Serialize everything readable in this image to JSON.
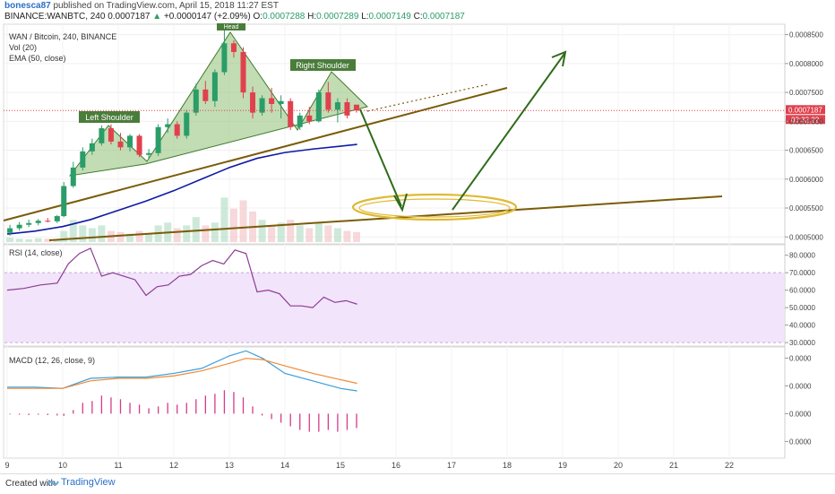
{
  "header": {
    "user": "bonesca87",
    "published": "published on TradingView.com, April 15, 2018 11:27 EST",
    "symbol_line": "BINANCE:WANBTC, 240",
    "price": "0.0007187",
    "change": "+0.0000147 (+2.09%)",
    "ohlc": {
      "o_label": "O:",
      "o": "0.0007288",
      "h_label": "H:",
      "h": "0.0007289",
      "l_label": "L:",
      "l": "0.0007149",
      "c_label": "C:",
      "c": "0.0007187"
    }
  },
  "legend": {
    "title": "WAN / Bitcoin, 240, BINANCE",
    "vol": "Vol (20)",
    "ema": "EMA (50, close)",
    "rsi": "RSI (14, close)",
    "macd": "MACD (12, 26, close, 9)"
  },
  "price_tag": {
    "price": "0.0007187",
    "timer": "03:32:22"
  },
  "annotations": {
    "left_shoulder": "Left Shoulder",
    "head": "Head",
    "right_shoulder": "Right Shoulder"
  },
  "footer": {
    "created": "Created with",
    "brand": "TradingView"
  },
  "colors": {
    "up": "#2a9d68",
    "down": "#e0414d",
    "ema": "#0e1aa3",
    "trendline": "#7a5c08",
    "pattern_fill": "#8fbf77",
    "arrow": "#2f6b1a",
    "ellipse": "#e0b932",
    "rsi": "#8b3d93",
    "rsi_band": "#f2e4fa",
    "macd": "#3b9ddc",
    "signal": "#f08a34",
    "hist": "#d63a8a"
  },
  "chart_data": [
    {
      "type": "candlestick",
      "title": "WAN / Bitcoin, 240, BINANCE",
      "x_ticks": [
        "9",
        "10",
        "11",
        "12",
        "13",
        "14",
        "15",
        "16",
        "17",
        "18",
        "19",
        "20",
        "21",
        "22"
      ],
      "y_ticks": [
        "0.0008500",
        "0.0008000",
        "0.0007500",
        "0.0007000",
        "0.0006500",
        "0.0006000",
        "0.0005500",
        "0.0005000"
      ],
      "ylim": [
        0.000488,
        0.000868
      ],
      "xlim": [
        9.0,
        23.0
      ],
      "last_price": 0.0007187,
      "candles": [
        {
          "t": 9.05,
          "o": 0.000507,
          "h": 0.000521,
          "l": 0.000502,
          "c": 0.000515
        },
        {
          "t": 9.22,
          "o": 0.000515,
          "h": 0.000526,
          "l": 0.000511,
          "c": 0.000521
        },
        {
          "t": 9.39,
          "o": 0.000521,
          "h": 0.00053,
          "l": 0.000517,
          "c": 0.000524
        },
        {
          "t": 9.56,
          "o": 0.000524,
          "h": 0.000531,
          "l": 0.00052,
          "c": 0.000528
        },
        {
          "t": 9.73,
          "o": 0.000528,
          "h": 0.000533,
          "l": 0.000525,
          "c": 0.000527
        },
        {
          "t": 9.9,
          "o": 0.000527,
          "h": 0.000538,
          "l": 0.000524,
          "c": 0.000536
        },
        {
          "t": 10.02,
          "o": 0.000536,
          "h": 0.000595,
          "l": 0.000534,
          "c": 0.000588
        },
        {
          "t": 10.19,
          "o": 0.000588,
          "h": 0.00063,
          "l": 0.000585,
          "c": 0.00062
        },
        {
          "t": 10.36,
          "o": 0.00062,
          "h": 0.000655,
          "l": 0.000615,
          "c": 0.000648
        },
        {
          "t": 10.53,
          "o": 0.000648,
          "h": 0.00067,
          "l": 0.000642,
          "c": 0.000662
        },
        {
          "t": 10.7,
          "o": 0.000662,
          "h": 0.000693,
          "l": 0.000658,
          "c": 0.000688
        },
        {
          "t": 10.87,
          "o": 0.000688,
          "h": 0.000695,
          "l": 0.00066,
          "c": 0.000665
        },
        {
          "t": 11.04,
          "o": 0.000665,
          "h": 0.00068,
          "l": 0.00065,
          "c": 0.000655
        },
        {
          "t": 11.21,
          "o": 0.000655,
          "h": 0.000678,
          "l": 0.000648,
          "c": 0.000675
        },
        {
          "t": 11.38,
          "o": 0.000675,
          "h": 0.000678,
          "l": 0.000638,
          "c": 0.000642
        },
        {
          "t": 11.55,
          "o": 0.000642,
          "h": 0.000652,
          "l": 0.000635,
          "c": 0.000645
        },
        {
          "t": 11.72,
          "o": 0.000645,
          "h": 0.000695,
          "l": 0.00064,
          "c": 0.00069
        },
        {
          "t": 11.89,
          "o": 0.00069,
          "h": 0.000705,
          "l": 0.00068,
          "c": 0.000695
        },
        {
          "t": 12.06,
          "o": 0.000695,
          "h": 0.0007,
          "l": 0.00067,
          "c": 0.000675
        },
        {
          "t": 12.23,
          "o": 0.000675,
          "h": 0.00072,
          "l": 0.00067,
          "c": 0.000715
        },
        {
          "t": 12.4,
          "o": 0.000715,
          "h": 0.000765,
          "l": 0.00071,
          "c": 0.000755
        },
        {
          "t": 12.57,
          "o": 0.000755,
          "h": 0.00077,
          "l": 0.00073,
          "c": 0.000735
        },
        {
          "t": 12.74,
          "o": 0.000735,
          "h": 0.00079,
          "l": 0.000725,
          "c": 0.000785
        },
        {
          "t": 12.91,
          "o": 0.000785,
          "h": 0.000865,
          "l": 0.00078,
          "c": 0.000835
        },
        {
          "t": 13.08,
          "o": 0.000835,
          "h": 0.00084,
          "l": 0.00081,
          "c": 0.00082
        },
        {
          "t": 13.25,
          "o": 0.00082,
          "h": 0.000828,
          "l": 0.00074,
          "c": 0.00075
        },
        {
          "t": 13.42,
          "o": 0.00075,
          "h": 0.00076,
          "l": 0.000705,
          "c": 0.000715
        },
        {
          "t": 13.59,
          "o": 0.000715,
          "h": 0.000745,
          "l": 0.00071,
          "c": 0.00074
        },
        {
          "t": 13.76,
          "o": 0.00074,
          "h": 0.000758,
          "l": 0.000715,
          "c": 0.00073
        },
        {
          "t": 13.93,
          "o": 0.00073,
          "h": 0.000745,
          "l": 0.000705,
          "c": 0.000735
        },
        {
          "t": 14.1,
          "o": 0.000735,
          "h": 0.00074,
          "l": 0.000685,
          "c": 0.00069
        },
        {
          "t": 14.27,
          "o": 0.00069,
          "h": 0.000715,
          "l": 0.000685,
          "c": 0.00071
        },
        {
          "t": 14.44,
          "o": 0.00071,
          "h": 0.000725,
          "l": 0.000695,
          "c": 0.0007
        },
        {
          "t": 14.61,
          "o": 0.0007,
          "h": 0.000755,
          "l": 0.000698,
          "c": 0.00075
        },
        {
          "t": 14.78,
          "o": 0.00075,
          "h": 0.000768,
          "l": 0.000715,
          "c": 0.00072
        },
        {
          "t": 14.95,
          "o": 0.00072,
          "h": 0.00074,
          "l": 0.000698,
          "c": 0.000733
        },
        {
          "t": 15.12,
          "o": 0.000733,
          "h": 0.00074,
          "l": 0.000705,
          "c": 0.00071
        },
        {
          "t": 15.29,
          "o": 0.0007288,
          "h": 0.0007289,
          "l": 0.0007149,
          "c": 0.0007187
        }
      ],
      "ema50": [
        [
          9.0,
          0.000505
        ],
        [
          9.5,
          0.00051
        ],
        [
          10.0,
          0.000518
        ],
        [
          10.5,
          0.00053
        ],
        [
          11.0,
          0.000546
        ],
        [
          11.5,
          0.000562
        ],
        [
          12.0,
          0.00058
        ],
        [
          12.5,
          0.0006
        ],
        [
          13.0,
          0.00062
        ],
        [
          13.5,
          0.000636
        ],
        [
          14.0,
          0.000646
        ],
        [
          14.5,
          0.000652
        ],
        [
          15.0,
          0.000657
        ],
        [
          15.3,
          0.00066
        ]
      ],
      "volume": {
        "ylim": [
          0,
          1
        ],
        "values": [
          0.08,
          0.06,
          0.05,
          0.07,
          0.06,
          0.05,
          0.2,
          0.4,
          0.3,
          0.25,
          0.3,
          0.2,
          0.18,
          0.15,
          0.2,
          0.16,
          0.3,
          0.35,
          0.25,
          0.3,
          0.45,
          0.3,
          0.35,
          0.8,
          0.6,
          0.75,
          0.55,
          0.4,
          0.3,
          0.35,
          0.4,
          0.3,
          0.25,
          0.35,
          0.3,
          0.25,
          0.2,
          0.18
        ]
      }
    },
    {
      "type": "line",
      "title": "RSI (14, close)",
      "y_ticks": [
        "80.0000",
        "70.0000",
        "60.0000",
        "50.0000",
        "40.0000",
        "30.0000"
      ],
      "ylim": [
        28,
        86
      ],
      "band": [
        30,
        70
      ],
      "x": [
        9.0,
        9.3,
        9.6,
        9.9,
        10.1,
        10.3,
        10.5,
        10.7,
        10.9,
        11.1,
        11.3,
        11.5,
        11.7,
        11.9,
        12.1,
        12.3,
        12.5,
        12.7,
        12.9,
        13.1,
        13.3,
        13.5,
        13.7,
        13.9,
        14.1,
        14.3,
        14.5,
        14.7,
        14.9,
        15.1,
        15.3
      ],
      "values": [
        60,
        61,
        63,
        64,
        75,
        81,
        84,
        68,
        70,
        68,
        66,
        57,
        62,
        63,
        68,
        69,
        74,
        77,
        75,
        83,
        81,
        59,
        60,
        58,
        51,
        51,
        50,
        56,
        53,
        54,
        52
      ]
    },
    {
      "type": "line",
      "title": "MACD (12, 26, close, 9)",
      "y_ticks": [
        "0.0000",
        "0.0000",
        "0.0000",
        "0.0000"
      ],
      "y_tick_values": [
        1.0,
        0.0,
        -1.0,
        -2.0
      ],
      "ylim": [
        -2.6,
        1.4
      ],
      "series": [
        {
          "name": "MACD",
          "x": [
            9.0,
            9.5,
            10.0,
            10.5,
            11.0,
            11.5,
            12.0,
            12.5,
            13.0,
            13.3,
            13.6,
            14.0,
            14.5,
            15.0,
            15.3
          ],
          "values": [
            -0.05,
            -0.05,
            -0.1,
            0.3,
            0.35,
            0.35,
            0.5,
            0.7,
            1.2,
            1.4,
            1.1,
            0.5,
            0.2,
            -0.1,
            -0.2
          ]
        },
        {
          "name": "Signal",
          "x": [
            9.0,
            9.5,
            10.0,
            10.5,
            11.0,
            11.5,
            12.0,
            12.5,
            13.0,
            13.3,
            13.6,
            14.0,
            14.5,
            15.0,
            15.3
          ],
          "values": [
            -0.1,
            -0.1,
            -0.1,
            0.2,
            0.3,
            0.3,
            0.4,
            0.6,
            0.9,
            1.1,
            1.05,
            0.8,
            0.5,
            0.25,
            0.1
          ]
        },
        {
          "name": "Histogram",
          "x": [
            9.05,
            9.22,
            9.39,
            9.56,
            9.73,
            9.9,
            10.02,
            10.19,
            10.36,
            10.53,
            10.7,
            10.87,
            11.04,
            11.21,
            11.38,
            11.55,
            11.72,
            11.89,
            12.06,
            12.23,
            12.4,
            12.57,
            12.74,
            12.91,
            13.08,
            13.25,
            13.42,
            13.59,
            13.76,
            13.93,
            14.1,
            14.27,
            14.44,
            14.61,
            14.78,
            14.95,
            15.12,
            15.29
          ],
          "values": [
            -0.02,
            -0.03,
            -0.04,
            -0.03,
            -0.04,
            -0.05,
            -0.06,
            0.1,
            0.3,
            0.35,
            0.5,
            0.45,
            0.4,
            0.3,
            0.25,
            0.15,
            0.2,
            0.3,
            0.25,
            0.3,
            0.4,
            0.5,
            0.55,
            0.65,
            0.6,
            0.45,
            0.2,
            -0.05,
            -0.15,
            -0.25,
            -0.35,
            -0.45,
            -0.5,
            -0.5,
            -0.45,
            -0.5,
            -0.45,
            -0.4
          ]
        }
      ]
    }
  ]
}
